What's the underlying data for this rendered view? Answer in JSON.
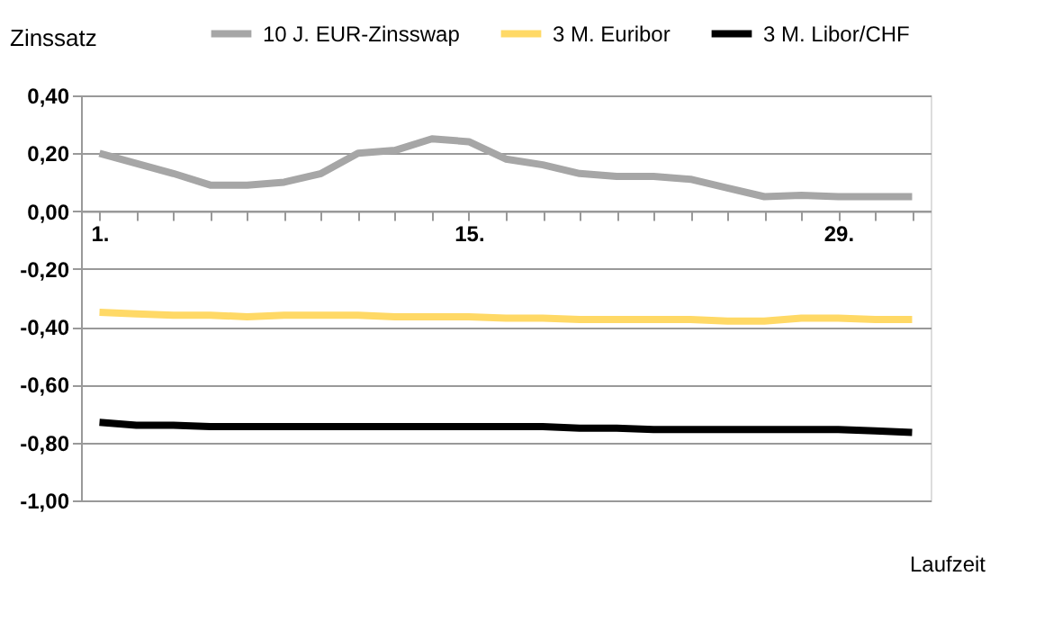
{
  "chart_data": {
    "type": "line",
    "ylabel": "Zinssatz",
    "xlabel": "Laufzeit",
    "categories": [
      "1.",
      null,
      null,
      null,
      null,
      null,
      null,
      null,
      null,
      null,
      "15.",
      null,
      null,
      null,
      null,
      null,
      null,
      null,
      null,
      null,
      "29.",
      null,
      null
    ],
    "series": [
      {
        "name": "10 J. EUR-Zinsswap",
        "color": "#a6a6a6",
        "values": [
          0.2,
          0.165,
          0.13,
          0.09,
          0.09,
          0.1,
          0.13,
          0.2,
          0.21,
          0.25,
          0.24,
          0.18,
          0.16,
          0.13,
          0.12,
          0.12,
          0.11,
          0.08,
          0.05,
          0.055,
          0.05,
          0.05,
          0.05
        ]
      },
      {
        "name": "3 M. Euribor",
        "color": "#ffd966",
        "values": [
          -0.35,
          -0.355,
          -0.36,
          -0.36,
          -0.365,
          -0.36,
          -0.36,
          -0.36,
          -0.365,
          -0.365,
          -0.365,
          -0.37,
          -0.37,
          -0.375,
          -0.375,
          -0.375,
          -0.375,
          -0.38,
          -0.38,
          -0.37,
          -0.37,
          -0.375,
          -0.375
        ]
      },
      {
        "name": "3 M. Libor/CHF",
        "color": "#000000",
        "values": [
          -0.73,
          -0.74,
          -0.74,
          -0.745,
          -0.745,
          -0.745,
          -0.745,
          -0.745,
          -0.745,
          -0.745,
          -0.745,
          -0.745,
          -0.745,
          -0.75,
          -0.75,
          -0.755,
          -0.755,
          -0.755,
          -0.755,
          -0.755,
          -0.755,
          -0.76,
          -0.765
        ]
      }
    ],
    "ylim": [
      -1.0,
      0.4
    ],
    "yticks": [
      {
        "value": 0.4,
        "label": "0,40"
      },
      {
        "value": 0.2,
        "label": "0,20"
      },
      {
        "value": 0.0,
        "label": "0,00"
      },
      {
        "value": -0.2,
        "label": "-0,20"
      },
      {
        "value": -0.4,
        "label": "-0,40"
      },
      {
        "value": -0.6,
        "label": "-0,60"
      },
      {
        "value": -0.8,
        "label": "-0,80"
      },
      {
        "value": -1.0,
        "label": "-1,00"
      }
    ],
    "grid": "y",
    "legend": "top",
    "marker": "none",
    "line_style": "solid"
  }
}
